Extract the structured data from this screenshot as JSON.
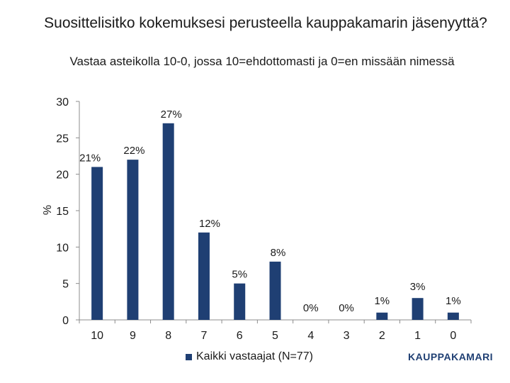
{
  "chart_data": {
    "type": "bar",
    "title": "Suosittelisitko kokemuksesi perusteella kauppakamarin jäsenyyttä?",
    "subtitle": "Vastaa asteikolla 10-0, jossa 10=ehdottomasti ja 0=en missään nimessä",
    "categories": [
      "10",
      "9",
      "8",
      "7",
      "6",
      "5",
      "4",
      "3",
      "2",
      "1",
      "0"
    ],
    "series": [
      {
        "name": "Kaikki vastaajat (N=77)",
        "values": [
          21,
          22,
          27,
          12,
          5,
          8,
          0,
          0,
          1,
          3,
          1
        ],
        "labels": [
          "21%",
          "22%",
          "27%",
          "12%",
          "5%",
          "8%",
          "0%",
          "0%",
          "1%",
          "3%",
          "1%"
        ]
      }
    ],
    "ylabel": "%",
    "xlabel": "",
    "ylim": [
      0,
      30
    ],
    "yticks": [
      "0",
      "5",
      "10",
      "15",
      "20",
      "25",
      "30"
    ],
    "legend_position": "bottom",
    "bar_color": "#1f3f73"
  },
  "brand": {
    "name": "KAUPPAKAMARI"
  }
}
